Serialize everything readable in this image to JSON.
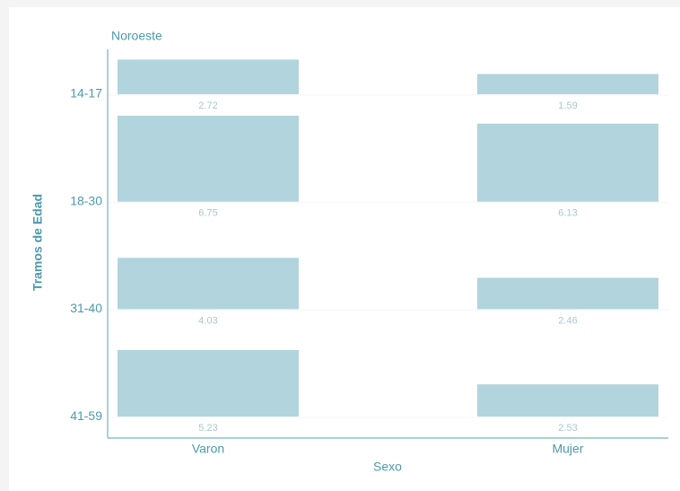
{
  "chart_data": {
    "type": "bar",
    "title": "Noroeste",
    "x_label": "Sexo",
    "y_label": "Tramos de Edad",
    "categories": [
      "14-17",
      "18-30",
      "31-40",
      "41-59"
    ],
    "series": [
      {
        "name": "Varon",
        "color": "#b1d4dd",
        "values": [
          2.72,
          6.75,
          4.03,
          5.23
        ]
      },
      {
        "name": "Mujer",
        "color": "#b1d4dd",
        "values": [
          1.59,
          6.13,
          2.46,
          2.53
        ]
      }
    ]
  }
}
